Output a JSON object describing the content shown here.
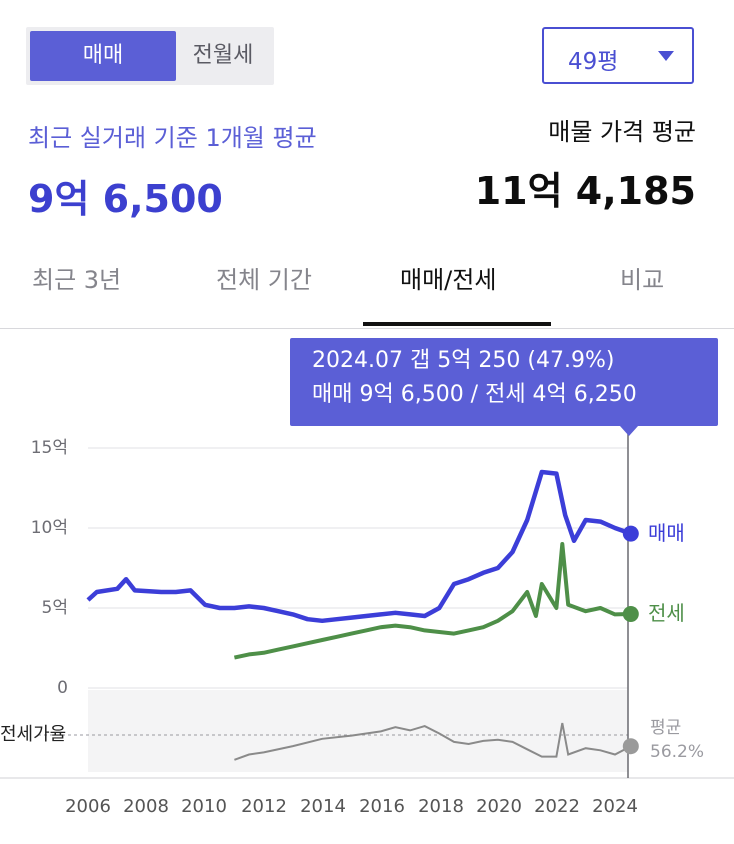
{
  "segment": {
    "options": [
      "매매",
      "전월세"
    ],
    "selected": "매매"
  },
  "size_dropdown": {
    "value": "49평"
  },
  "summary": {
    "recent_label": "최근 실거래 기준 1개월 평균",
    "recent_value": "9억 6,500",
    "listing_label": "매물 가격 평균",
    "listing_value": "11억 4,185"
  },
  "tabs": [
    {
      "label": "최근 3년",
      "active": false
    },
    {
      "label": "전체 기간",
      "active": false
    },
    {
      "label": "매매/전세",
      "active": true
    },
    {
      "label": "비교",
      "active": false
    }
  ],
  "tooltip": {
    "line1": "2024.07  갭 5억 250 (47.9%)",
    "line2": "매매 9억 6,500 / 전세 4억 6,250"
  },
  "colors": {
    "accent": "#5b5fd6",
    "sale": "#3c3ed8",
    "jeonse": "#4e8f48",
    "ratio": "#8a8a8a"
  },
  "chart_data": {
    "type": "line",
    "y_ticks": [
      "15억",
      "10억",
      "5억",
      "0"
    ],
    "y_tick_values": [
      15,
      10,
      5,
      0
    ],
    "x_ticks": [
      "2006",
      "2008",
      "2010",
      "2012",
      "2014",
      "2016",
      "2018",
      "2020",
      "2022",
      "2024"
    ],
    "ratio_axis_label": "전세가율",
    "ratio_avg_label": "평균",
    "ratio_avg_value": "56.2%",
    "ylim": [
      0,
      15.5
    ],
    "series": [
      {
        "name": "매매",
        "unit": "억",
        "points": [
          [
            2006.0,
            5.5
          ],
          [
            2006.3,
            6.0
          ],
          [
            2007.0,
            6.2
          ],
          [
            2007.3,
            6.8
          ],
          [
            2007.6,
            6.1
          ],
          [
            2008.5,
            6.0
          ],
          [
            2009.0,
            6.0
          ],
          [
            2009.5,
            6.1
          ],
          [
            2010.0,
            5.2
          ],
          [
            2010.5,
            5.0
          ],
          [
            2011.0,
            5.0
          ],
          [
            2011.5,
            5.1
          ],
          [
            2012.0,
            5.0
          ],
          [
            2012.5,
            4.8
          ],
          [
            2013.0,
            4.6
          ],
          [
            2013.5,
            4.3
          ],
          [
            2014.0,
            4.2
          ],
          [
            2014.5,
            4.3
          ],
          [
            2015.0,
            4.4
          ],
          [
            2015.5,
            4.5
          ],
          [
            2016.0,
            4.6
          ],
          [
            2016.5,
            4.7
          ],
          [
            2017.0,
            4.6
          ],
          [
            2017.5,
            4.5
          ],
          [
            2018.0,
            5.0
          ],
          [
            2018.5,
            6.5
          ],
          [
            2019.0,
            6.8
          ],
          [
            2019.5,
            7.2
          ],
          [
            2020.0,
            7.5
          ],
          [
            2020.5,
            8.5
          ],
          [
            2021.0,
            10.5
          ],
          [
            2021.5,
            13.5
          ],
          [
            2022.0,
            13.4
          ],
          [
            2022.3,
            10.8
          ],
          [
            2022.6,
            9.2
          ],
          [
            2023.0,
            10.5
          ],
          [
            2023.5,
            10.4
          ],
          [
            2024.0,
            10.0
          ],
          [
            2024.54,
            9.65
          ]
        ]
      },
      {
        "name": "전세",
        "unit": "억",
        "points": [
          [
            2011.0,
            1.9
          ],
          [
            2011.5,
            2.1
          ],
          [
            2012.0,
            2.2
          ],
          [
            2012.5,
            2.4
          ],
          [
            2013.0,
            2.6
          ],
          [
            2013.5,
            2.8
          ],
          [
            2014.0,
            3.0
          ],
          [
            2014.5,
            3.2
          ],
          [
            2015.0,
            3.4
          ],
          [
            2015.5,
            3.6
          ],
          [
            2016.0,
            3.8
          ],
          [
            2016.5,
            3.9
          ],
          [
            2017.0,
            3.8
          ],
          [
            2017.5,
            3.6
          ],
          [
            2018.0,
            3.5
          ],
          [
            2018.5,
            3.4
          ],
          [
            2019.0,
            3.6
          ],
          [
            2019.5,
            3.8
          ],
          [
            2020.0,
            4.2
          ],
          [
            2020.5,
            4.8
          ],
          [
            2021.0,
            6.0
          ],
          [
            2021.3,
            4.5
          ],
          [
            2021.5,
            6.5
          ],
          [
            2022.0,
            5.0
          ],
          [
            2022.2,
            9.0
          ],
          [
            2022.4,
            5.2
          ],
          [
            2023.0,
            4.8
          ],
          [
            2023.5,
            5.0
          ],
          [
            2024.0,
            4.6
          ],
          [
            2024.54,
            4.625
          ]
        ]
      },
      {
        "name": "전세가율",
        "unit": "%",
        "points": [
          [
            2011.0,
            35
          ],
          [
            2011.5,
            40
          ],
          [
            2012.0,
            42
          ],
          [
            2013.0,
            48
          ],
          [
            2014.0,
            55
          ],
          [
            2015.0,
            58
          ],
          [
            2016.0,
            62
          ],
          [
            2016.5,
            66
          ],
          [
            2017.0,
            63
          ],
          [
            2017.5,
            67
          ],
          [
            2018.0,
            60
          ],
          [
            2018.5,
            52
          ],
          [
            2019.0,
            50
          ],
          [
            2019.5,
            53
          ],
          [
            2020.0,
            54
          ],
          [
            2020.5,
            52
          ],
          [
            2021.0,
            45
          ],
          [
            2021.5,
            38
          ],
          [
            2022.0,
            38
          ],
          [
            2022.2,
            70
          ],
          [
            2022.4,
            40
          ],
          [
            2023.0,
            46
          ],
          [
            2023.5,
            44
          ],
          [
            2024.0,
            40
          ],
          [
            2024.54,
            47.9
          ]
        ]
      }
    ],
    "grid": true,
    "legend": "end-of-line labels"
  }
}
